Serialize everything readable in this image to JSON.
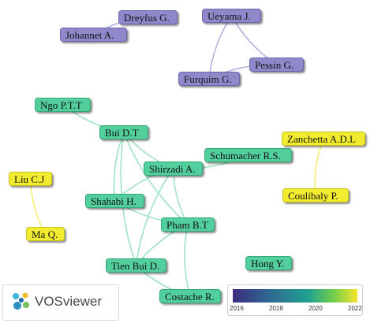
{
  "nodes": [
    {
      "id": "dreyfus",
      "label": "Dreyfus G.",
      "cluster": "purple"
    },
    {
      "id": "johannet",
      "label": "Johannet A.",
      "cluster": "purple"
    },
    {
      "id": "ueyama",
      "label": "Ueyama J.",
      "cluster": "purple"
    },
    {
      "id": "pessin",
      "label": "Pessin G.",
      "cluster": "purple"
    },
    {
      "id": "furquim",
      "label": "Furquim G.",
      "cluster": "purple"
    },
    {
      "id": "ngo",
      "label": "Ngo P.T.T",
      "cluster": "teal"
    },
    {
      "id": "buidt",
      "label": "Bui D.T",
      "cluster": "teal"
    },
    {
      "id": "shirzadi",
      "label": "Shirzadi A.",
      "cluster": "teal"
    },
    {
      "id": "schumacher",
      "label": "Schumacher R.S.",
      "cluster": "teal"
    },
    {
      "id": "shahabi",
      "label": "Shahabi H.",
      "cluster": "teal"
    },
    {
      "id": "pham",
      "label": "Pham B.T",
      "cluster": "teal"
    },
    {
      "id": "tienbui",
      "label": "Tien Bui D.",
      "cluster": "teal"
    },
    {
      "id": "hong",
      "label": "Hong Y.",
      "cluster": "teal"
    },
    {
      "id": "costache",
      "label": "Costache R.",
      "cluster": "teal"
    },
    {
      "id": "zanchetta",
      "label": "Zanchetta A.D.L",
      "cluster": "yellow"
    },
    {
      "id": "coulibaly",
      "label": "Coulibaly P.",
      "cluster": "yellow"
    },
    {
      "id": "liu",
      "label": "Liu C.J",
      "cluster": "yellow"
    },
    {
      "id": "ma",
      "label": "Ma Q.",
      "cluster": "yellow"
    }
  ],
  "links": [
    [
      "dreyfus",
      "johannet"
    ],
    [
      "ueyama",
      "pessin"
    ],
    [
      "ueyama",
      "furquim"
    ],
    [
      "pessin",
      "furquim"
    ],
    [
      "ngo",
      "buidt"
    ],
    [
      "buidt",
      "shirzadi"
    ],
    [
      "buidt",
      "shahabi"
    ],
    [
      "buidt",
      "pham"
    ],
    [
      "buidt",
      "tienbui"
    ],
    [
      "shirzadi",
      "schumacher"
    ],
    [
      "shirzadi",
      "shahabi"
    ],
    [
      "shirzadi",
      "pham"
    ],
    [
      "shirzadi",
      "tienbui"
    ],
    [
      "shahabi",
      "pham"
    ],
    [
      "pham",
      "tienbui"
    ],
    [
      "pham",
      "costache"
    ],
    [
      "tienbui",
      "costache"
    ],
    [
      "zanchetta",
      "coulibaly"
    ],
    [
      "liu",
      "ma"
    ]
  ],
  "colors": {
    "purple": "#8f89cc",
    "teal": "#52cf9c",
    "yellow": "#f2ec30",
    "purple_link": "#b3aee0",
    "teal_link": "#9fe3c3",
    "yellow_link": "#f3ee74"
  },
  "brand": {
    "name": "VOSviewer",
    "icon": "vosviewer-logo-icon"
  },
  "legend": {
    "ticks": [
      "2016",
      "2018",
      "2020",
      "2022"
    ]
  }
}
